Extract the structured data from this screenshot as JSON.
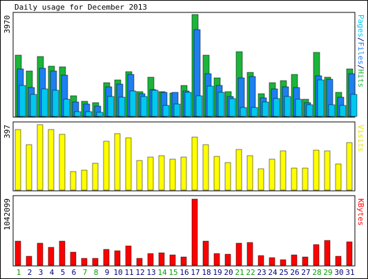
{
  "chart_data": {
    "type": "bar",
    "title": "Daily usage for December 2013",
    "categories": [
      "1",
      "2",
      "3",
      "4",
      "5",
      "6",
      "7",
      "8",
      "9",
      "10",
      "11",
      "12",
      "13",
      "14",
      "15",
      "16",
      "17",
      "18",
      "19",
      "20",
      "21",
      "22",
      "23",
      "24",
      "25",
      "26",
      "27",
      "28",
      "29",
      "30",
      "31"
    ],
    "weekend_days": [
      "1",
      "7",
      "8",
      "14",
      "15",
      "21",
      "22",
      "28",
      "29"
    ],
    "colors": {
      "weekday_label": "#000080",
      "weekend_label": "#00a000",
      "separator": "#000080"
    },
    "panels": [
      {
        "ymax_label": "3970",
        "ylim": [
          0,
          3970
        ],
        "legend": [
          {
            "text": "Pages",
            "color": "#00c8f0"
          },
          {
            "text": "/",
            "color": "#000080"
          },
          {
            "text": "Files",
            "color": "#1e7ff0"
          },
          {
            "text": "/",
            "color": "#000080"
          },
          {
            "text": "Hits",
            "color": "#1cb43a"
          }
        ],
        "series": [
          {
            "name": "Hits",
            "color": "#1cb43a",
            "values": [
              2400,
              1780,
              2340,
              1960,
              1930,
              800,
              580,
              530,
              1320,
              1410,
              1750,
              970,
              1520,
              970,
              920,
              1200,
              3970,
              2400,
              1500,
              970,
              2530,
              1720,
              890,
              1320,
              1400,
              1640,
              660,
              2500,
              1530,
              940,
              1860
            ]
          },
          {
            "name": "Files",
            "color": "#1e7ff0",
            "values": [
              1860,
              1130,
              1890,
              1780,
              1610,
              560,
              480,
              400,
              1160,
              1270,
              1640,
              890,
              1050,
              940,
              940,
              1000,
              3380,
              1670,
              1210,
              780,
              1500,
              1560,
              730,
              1080,
              1160,
              1130,
              530,
              1580,
              1450,
              760,
              1670
            ]
          },
          {
            "name": "Pages",
            "color": "#00c8f0",
            "values": [
              1210,
              860,
              1080,
              1030,
              670,
              190,
              190,
              160,
              780,
              760,
              1000,
              780,
              1030,
              430,
              480,
              940,
              810,
              1180,
              940,
              700,
              350,
              350,
              560,
              700,
              780,
              670,
              460,
              1420,
              460,
              430,
              860
            ]
          }
        ]
      },
      {
        "ymax_label": "397",
        "ylim": [
          0,
          397
        ],
        "legend": [
          {
            "text": "Visits",
            "color": "#e6e600"
          }
        ],
        "series": [
          {
            "name": "Visits",
            "color": "#ffff00",
            "values": [
              368,
              275,
              397,
              368,
              338,
              114,
              123,
              165,
              296,
              342,
              317,
              178,
              199,
              207,
              186,
              199,
              321,
              275,
              203,
              169,
              245,
              211,
              131,
              186,
              237,
              135,
              135,
              241,
              237,
              157,
              287
            ]
          }
        ]
      },
      {
        "ymax_label": "1042099",
        "ylim": [
          0,
          1042099
        ],
        "legend": [
          {
            "text": "KBytes",
            "color": "#ff0000"
          }
        ],
        "series": [
          {
            "name": "KBytes",
            "color": "#ff0000",
            "values": [
              384000,
              142000,
              351000,
              285000,
              384000,
              208000,
              110000,
              110000,
              252000,
              230000,
              307000,
              110000,
              186000,
              197000,
              164000,
              132000,
              1042099,
              384000,
              186000,
              175000,
              351000,
              362000,
              153000,
              121000,
              88000,
              164000,
              132000,
              329000,
              395000,
              142000,
              373000
            ]
          }
        ]
      }
    ]
  }
}
